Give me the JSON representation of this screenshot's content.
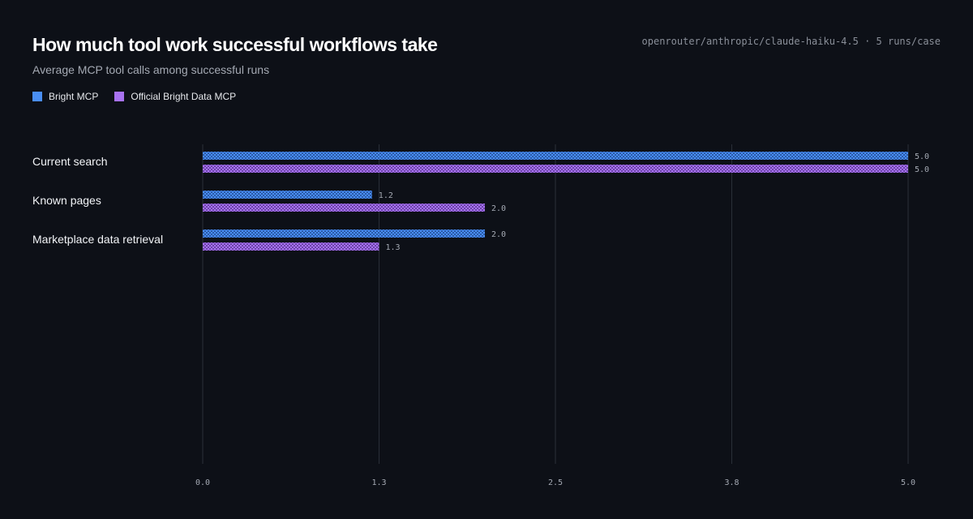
{
  "header": {
    "title": "How much tool work successful workflows take",
    "subtitle": "Average MCP tool calls among successful runs",
    "meta": "openrouter/anthropic/claude-haiku-4.5 · 5 runs/case"
  },
  "colors": {
    "background": "#0d1017",
    "series_1": "#4a8ef2",
    "series_2": "#a872f0",
    "grid": "#2a2f38"
  },
  "chart_data": {
    "type": "bar",
    "orientation": "horizontal",
    "title": "How much tool work successful workflows take",
    "subtitle": "Average MCP tool calls among successful runs",
    "categories": [
      "Current search",
      "Known pages",
      "Marketplace data retrieval"
    ],
    "series": [
      {
        "name": "Bright MCP",
        "color": "#4a8ef2",
        "values": [
          5.0,
          1.2,
          2.0
        ],
        "labels": [
          "5.0",
          "1.2",
          "2.0"
        ]
      },
      {
        "name": "Official Bright Data MCP",
        "color": "#a872f0",
        "values": [
          5.0,
          2.0,
          1.25
        ],
        "labels": [
          "5.0",
          "2.0",
          "1.3"
        ]
      }
    ],
    "xlim": [
      0,
      5
    ],
    "xticks": [
      0,
      1.25,
      2.5,
      3.75,
      5
    ],
    "xtick_labels": [
      "0.0",
      "1.3",
      "2.5",
      "3.8",
      "5.0"
    ],
    "grid": true,
    "legend_position": "top-left"
  }
}
